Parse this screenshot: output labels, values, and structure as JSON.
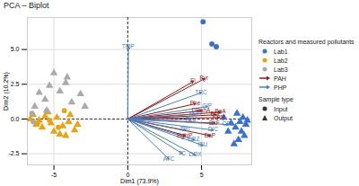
{
  "chart_data": {
    "type": "biplot",
    "title": "PCA – Biplot",
    "x_label": "Dim1 (73.9%)",
    "y_label": "Dim2 (10.2%)",
    "xlim": [
      -6.8,
      8.4
    ],
    "ylim": [
      -3.3,
      7.3
    ],
    "xticks": [
      -5,
      0,
      5
    ],
    "yticks": [
      -2.5,
      {
        "value": 0,
        "label": "0.0"
      },
      2.5,
      {
        "value": 5,
        "label": "5.0"
      }
    ],
    "grid": true,
    "origin": [
      0,
      0
    ],
    "legend": "right",
    "legend_title": "Reactors and measured pollutants",
    "shape_legend_title": "Sample type",
    "shapes": [
      {
        "name": "Input",
        "marker": "circle"
      },
      {
        "name": "Output",
        "marker": "triangle"
      }
    ],
    "series": [
      {
        "name": "Lab1",
        "color": "#3b6fd6",
        "x": [
          5.1,
          5.7,
          6.0,
          7.4,
          7.8,
          7.6,
          8.0,
          7.3,
          7.7,
          7.9,
          7.5,
          8.1,
          7.0,
          6.8,
          7.2,
          6.5
        ],
        "y": [
          7.0,
          5.4,
          5.2,
          0.4,
          0.1,
          -0.2,
          -0.4,
          -0.6,
          -0.9,
          -1.2,
          -1.5,
          -0.1,
          -0.3,
          -0.9,
          -1.8,
          0.1
        ],
        "sample_type": [
          "Input",
          "Input",
          "Input",
          "Output",
          "Output",
          "Output",
          "Output",
          "Output",
          "Output",
          "Output",
          "Output",
          "Output",
          "Output",
          "Output",
          "Output",
          "Output"
        ]
      },
      {
        "name": "Lab2",
        "color": "#e8a317",
        "x": [
          -6.4,
          -6.0,
          -5.6,
          -5.2,
          -4.8,
          -4.4,
          -4.0,
          -3.6,
          -5.8,
          -5.0,
          -4.6,
          -6.2,
          -3.9,
          -5.4,
          -4.2,
          -6.6,
          -3.4,
          -6.1,
          -5.3,
          -4.7,
          -4.3
        ],
        "y": [
          0.3,
          -0.1,
          0.2,
          -0.3,
          0.1,
          -0.5,
          -0.2,
          -0.8,
          -0.6,
          -0.9,
          -1.1,
          -0.4,
          0.3,
          0.5,
          -1.2,
          0.0,
          -0.4,
          -0.3,
          -0.1,
          -0.6,
          0.6
        ],
        "sample_type": [
          "Output",
          "Output",
          "Output",
          "Output",
          "Output",
          "Output",
          "Output",
          "Output",
          "Output",
          "Output",
          "Output",
          "Output",
          "Output",
          "Output",
          "Output",
          "Output",
          "Output",
          "Input",
          "Input",
          "Input",
          "Input"
        ]
      },
      {
        "name": "Lab3",
        "color": "#aaaaaa",
        "x": [
          -4.2,
          -5.0,
          -3.2,
          -5.6,
          -6.3,
          -4.6,
          -3.8,
          -5.3,
          -6.0,
          -4.1,
          -2.9,
          -5.5,
          -6.4,
          -6.5
        ],
        "y": [
          2.6,
          3.3,
          1.8,
          1.4,
          0.9,
          2.0,
          1.2,
          2.4,
          1.9,
          3.0,
          0.9,
          0.6,
          -0.2,
          0.4
        ],
        "sample_type": [
          "Output",
          "Output",
          "Output",
          "Output",
          "Output",
          "Output",
          "Output",
          "Output",
          "Output",
          "Output",
          "Output",
          "Output",
          "Input",
          "Input"
        ]
      }
    ],
    "vectors": [
      {
        "name": "PAH",
        "color": "#8b1a1a",
        "labels": [
          "Fl",
          "Pyr",
          "Phe",
          "DBahA",
          "BbF",
          "BaA",
          "Chry",
          "BkF",
          "BaP",
          "BghiP"
        ],
        "x": [
          4.45,
          5.2,
          4.6,
          5.0,
          6.0,
          6.3,
          6.2,
          5.9,
          5.6,
          3.9
        ],
        "y": [
          2.7,
          2.9,
          1.1,
          0.6,
          0.3,
          0.5,
          0.1,
          -0.3,
          -1.2,
          -1.2
        ]
      },
      {
        "name": "PHP",
        "color": "#4a7fb5",
        "labels": [
          "TMP",
          "TRC",
          "CIP",
          "NOR",
          "FLU",
          "CFL",
          "DIC",
          "TRI",
          "CBZ",
          "IBU",
          "TC",
          "DOX",
          "ATC"
        ],
        "x": [
          0.05,
          5.0,
          5.4,
          4.6,
          4.3,
          6.8,
          5.8,
          3.9,
          4.5,
          5.1,
          3.7,
          4.6,
          2.8
        ],
        "y": [
          5.2,
          1.9,
          0.9,
          0.35,
          -0.05,
          -0.4,
          -0.8,
          -0.8,
          -1.5,
          -1.9,
          -2.5,
          -2.6,
          -2.9
        ]
      }
    ]
  }
}
